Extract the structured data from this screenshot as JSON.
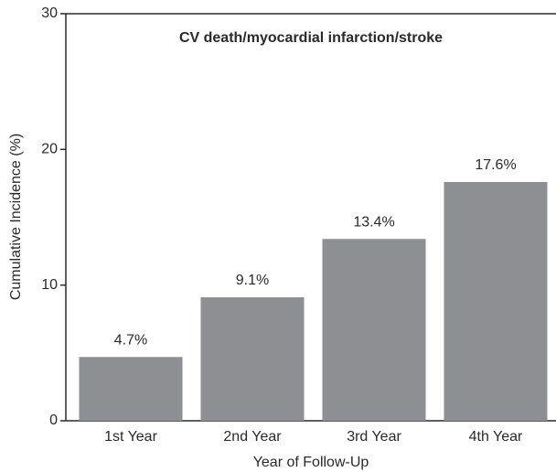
{
  "chart_data": {
    "type": "bar",
    "title": "CV death/myocardial infarction/stroke",
    "xlabel": "Year of Follow-Up",
    "ylabel": "Cumulative Incidence (%)",
    "categories": [
      "1st Year",
      "2nd Year",
      "3rd Year",
      "4th Year"
    ],
    "values": [
      4.7,
      9.1,
      13.4,
      17.6
    ],
    "value_labels": [
      "4.7%",
      "9.1%",
      "13.4%",
      "17.6%"
    ],
    "color": "#8e8f93",
    "ylim": [
      0,
      30
    ],
    "yticks": [
      0,
      10,
      20,
      30
    ],
    "grid": false
  }
}
